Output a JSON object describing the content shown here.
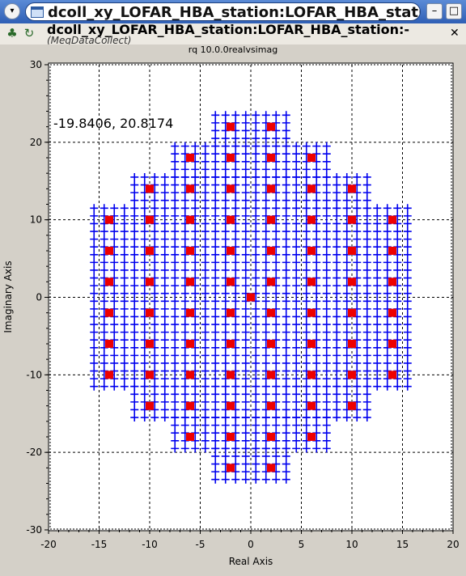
{
  "window": {
    "title": "dcoll_xy_LOFAR_HBA_station:LOFAR_HBA_station",
    "menu_glyph": "▾",
    "buttons": {
      "minimize": "–",
      "maximize": "□",
      "close": "✕"
    }
  },
  "toolbar": {
    "heading": "dcoll_xy_LOFAR_HBA_station:LOFAR_HBA_station:-",
    "subheading": "(MeqDataCollect)",
    "close_label": "✕",
    "icons": [
      "graph-icon",
      "refresh-icon"
    ]
  },
  "plot": {
    "title": "rq 10.0.0realvsimag",
    "readout": "-19.8406, 20.8174"
  },
  "chart_data": {
    "type": "scatter",
    "title": "rq 10.0.0realvsimag",
    "xlabel": "Real Axis",
    "ylabel": "Imaginary Axis",
    "xlim": [
      -20,
      20
    ],
    "ylim": [
      -30,
      30
    ],
    "xticks": [
      -20,
      -15,
      -10,
      -5,
      0,
      5,
      10,
      15,
      20
    ],
    "yticks": [
      -30,
      -20,
      -10,
      0,
      10,
      20,
      30
    ],
    "grid": true,
    "colors": {
      "blue_marks": "#0000ee",
      "red_marks": "#ee0000"
    },
    "series": [
      {
        "marker": "plus",
        "color": "#0000ee",
        "pattern": "station-grid",
        "row_spacing": 2,
        "rows": [
          {
            "y_values": [
              22,
              22,
              22,
              22,
              22
            ],
            "note": ""
          },
          {
            "dummy": 0
          }
        ]
      }
    ],
    "blue_row_extents": [
      {
        "y": 23.5,
        "xmin": -3.5,
        "xmax": 3.5
      },
      {
        "y": 19.5,
        "xmin": -7.5,
        "xmax": 7.5
      },
      {
        "y": 15.5,
        "xmin": -11.5,
        "xmax": 11.5
      },
      {
        "y": 11.5,
        "xmin": -15.5,
        "xmax": 15.5
      },
      {
        "y": -11.5,
        "xmin": -15.5,
        "xmax": 15.5
      },
      {
        "y": -15.5,
        "xmin": -11.5,
        "xmax": 11.5
      },
      {
        "y": -19.5,
        "xmin": -7.5,
        "xmax": 7.5
      },
      {
        "y": -23.5,
        "xmin": -3.5,
        "xmax": 3.5
      }
    ],
    "red_points": [
      [
        -2,
        22
      ],
      [
        2,
        22
      ],
      [
        -6,
        18
      ],
      [
        -2,
        18
      ],
      [
        2,
        18
      ],
      [
        6,
        18
      ],
      [
        -10,
        14
      ],
      [
        -6,
        14
      ],
      [
        -2,
        14
      ],
      [
        2,
        14
      ],
      [
        6,
        14
      ],
      [
        10,
        14
      ],
      [
        -14,
        10
      ],
      [
        -10,
        10
      ],
      [
        -6,
        10
      ],
      [
        -2,
        10
      ],
      [
        2,
        10
      ],
      [
        6,
        10
      ],
      [
        10,
        10
      ],
      [
        14,
        10
      ],
      [
        -14,
        6
      ],
      [
        -10,
        6
      ],
      [
        -6,
        6
      ],
      [
        -2,
        6
      ],
      [
        2,
        6
      ],
      [
        6,
        6
      ],
      [
        10,
        6
      ],
      [
        14,
        6
      ],
      [
        -14,
        2
      ],
      [
        -10,
        2
      ],
      [
        -6,
        2
      ],
      [
        -2,
        2
      ],
      [
        2,
        2
      ],
      [
        6,
        2
      ],
      [
        10,
        2
      ],
      [
        14,
        2
      ],
      [
        0,
        0
      ],
      [
        -14,
        -2
      ],
      [
        -10,
        -2
      ],
      [
        -6,
        -2
      ],
      [
        -2,
        -2
      ],
      [
        2,
        -2
      ],
      [
        6,
        -2
      ],
      [
        10,
        -2
      ],
      [
        14,
        -2
      ],
      [
        -14,
        -6
      ],
      [
        -10,
        -6
      ],
      [
        -6,
        -6
      ],
      [
        -2,
        -6
      ],
      [
        2,
        -6
      ],
      [
        6,
        -6
      ],
      [
        10,
        -6
      ],
      [
        14,
        -6
      ],
      [
        -14,
        -10
      ],
      [
        -10,
        -10
      ],
      [
        -6,
        -10
      ],
      [
        -2,
        -10
      ],
      [
        2,
        -10
      ],
      [
        6,
        -10
      ],
      [
        10,
        -10
      ],
      [
        14,
        -10
      ],
      [
        -10,
        -14
      ],
      [
        -6,
        -14
      ],
      [
        -2,
        -14
      ],
      [
        2,
        -14
      ],
      [
        6,
        -14
      ],
      [
        10,
        -14
      ],
      [
        -6,
        -18
      ],
      [
        -2,
        -18
      ],
      [
        2,
        -18
      ],
      [
        6,
        -18
      ],
      [
        -2,
        -22
      ],
      [
        2,
        -22
      ]
    ]
  }
}
